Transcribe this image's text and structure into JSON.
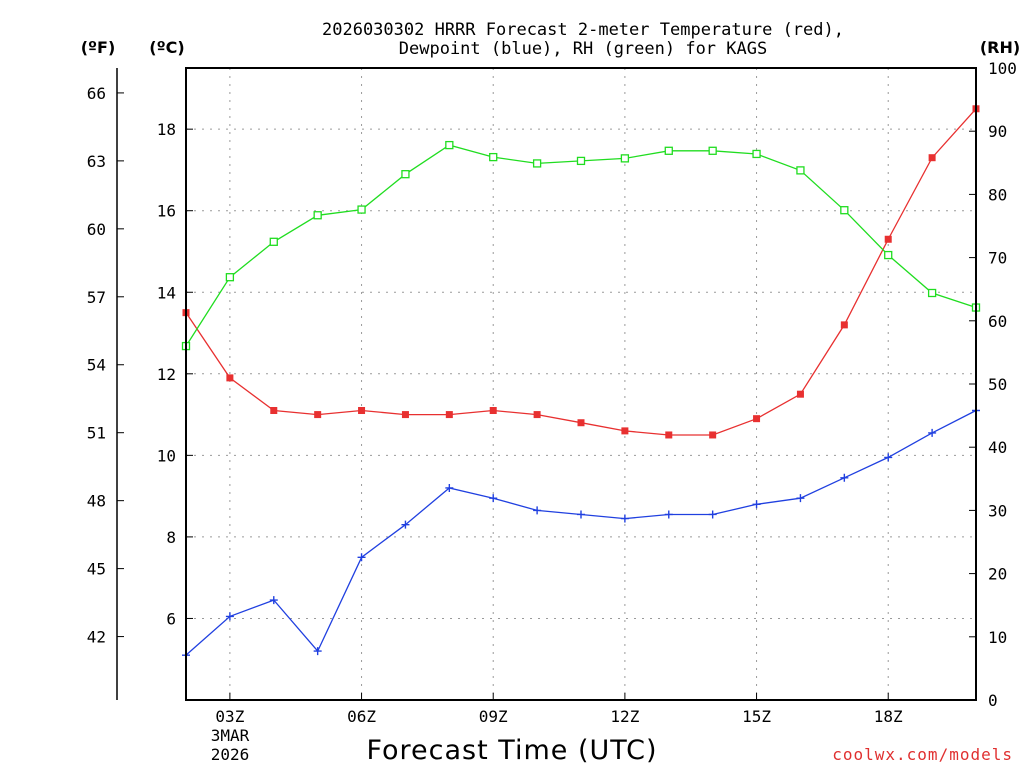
{
  "chart_data": {
    "type": "line",
    "title_line1": "2026030302 HRRR Forecast 2-meter Temperature (red),",
    "title_line2": "Dewpoint (blue), RH (green) for KAGS",
    "xlabel": "Forecast Time (UTC)",
    "credit": "coolwx.com/models",
    "unit_f": "(ºF)",
    "unit_c": "(ºC)",
    "unit_rh": "(RH)",
    "date_line1": "3MAR",
    "date_line2": "2026",
    "x_hours": [
      2,
      3,
      4,
      5,
      6,
      7,
      8,
      9,
      10,
      11,
      12,
      13,
      14,
      15,
      16,
      17,
      18,
      19,
      20
    ],
    "xlim": [
      2,
      20
    ],
    "x_ticks": [
      {
        "hour": 3,
        "label": "03Z"
      },
      {
        "hour": 6,
        "label": "06Z"
      },
      {
        "hour": 9,
        "label": "09Z"
      },
      {
        "hour": 12,
        "label": "12Z"
      },
      {
        "hour": 15,
        "label": "15Z"
      },
      {
        "hour": 18,
        "label": "18Z"
      }
    ],
    "ylim_c": [
      4,
      19.5
    ],
    "ylim_f": [
      39.2,
      67.1
    ],
    "ylim_rh": [
      0,
      100
    ],
    "c_ticks": [
      "6",
      "8",
      "10",
      "12",
      "14",
      "16",
      "18"
    ],
    "f_ticks": [
      "42",
      "45",
      "48",
      "51",
      "54",
      "57",
      "60",
      "63",
      "66"
    ],
    "rh_ticks": [
      "0",
      "10",
      "20",
      "30",
      "40",
      "50",
      "60",
      "70",
      "80",
      "90",
      "100"
    ],
    "series": [
      {
        "name": "Temperature",
        "unit": "C",
        "color": "#e83030",
        "marker": "filled-square",
        "values": [
          13.5,
          11.9,
          11.1,
          11.0,
          11.1,
          11.0,
          11.0,
          11.1,
          11.0,
          10.8,
          10.6,
          10.5,
          10.5,
          10.9,
          11.5,
          13.2,
          15.3,
          17.3,
          18.5
        ]
      },
      {
        "name": "Dewpoint",
        "unit": "C",
        "color": "#2040e0",
        "marker": "plus",
        "values": [
          5.1,
          6.05,
          6.45,
          5.2,
          7.5,
          8.3,
          9.2,
          8.95,
          8.65,
          8.55,
          8.45,
          8.55,
          8.55,
          8.8,
          8.95,
          9.45,
          9.95,
          10.55,
          11.1
        ]
      },
      {
        "name": "Relative Humidity",
        "unit": "RH",
        "color": "#20dd20",
        "marker": "open-square",
        "values": [
          56.0,
          66.9,
          72.5,
          76.7,
          77.6,
          83.2,
          87.8,
          85.9,
          84.9,
          85.3,
          85.7,
          86.9,
          86.9,
          86.4,
          83.8,
          77.5,
          70.4,
          64.4,
          62.1
        ]
      }
    ]
  }
}
